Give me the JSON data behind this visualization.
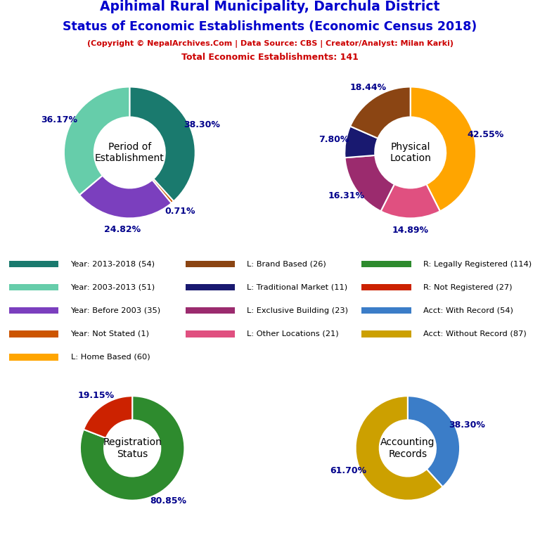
{
  "title_line1": "Apihimal Rural Municipality, Darchula District",
  "title_line2": "Status of Economic Establishments (Economic Census 2018)",
  "subtitle": "(Copyright © NepalArchives.Com | Data Source: CBS | Creator/Analyst: Milan Karki)",
  "subtitle2": "Total Economic Establishments: 141",
  "title_color": "#0000CC",
  "subtitle_color": "#CC0000",
  "pie1_label": "Period of\nEstablishment",
  "pie1_values": [
    38.3,
    0.71,
    24.82,
    36.17
  ],
  "pie1_colors": [
    "#1A7A6E",
    "#CC5500",
    "#7B3FBE",
    "#66CDAA"
  ],
  "pie1_pct": [
    "38.30%",
    "0.71%",
    "24.82%",
    "36.17%"
  ],
  "pie2_label": "Physical\nLocation",
  "pie2_values": [
    42.55,
    14.89,
    16.31,
    7.8,
    18.44
  ],
  "pie2_colors": [
    "#FFA500",
    "#E05080",
    "#9B2B6E",
    "#191970",
    "#8B4513"
  ],
  "pie2_pct": [
    "42.55%",
    "14.89%",
    "16.31%",
    "7.80%",
    "18.44%"
  ],
  "pie3_label": "Registration\nStatus",
  "pie3_values": [
    80.85,
    19.15
  ],
  "pie3_colors": [
    "#2E8B2E",
    "#CC2200"
  ],
  "pie3_pct": [
    "80.85%",
    "19.15%"
  ],
  "pie4_label": "Accounting\nRecords",
  "pie4_values": [
    38.3,
    61.7
  ],
  "pie4_colors": [
    "#3B7DC8",
    "#CCA000"
  ],
  "pie4_pct": [
    "38.30%",
    "61.70%"
  ],
  "legend_items": [
    {
      "label": "Year: 2013-2018 (54)",
      "color": "#1A7A6E"
    },
    {
      "label": "Year: 2003-2013 (51)",
      "color": "#66CDAA"
    },
    {
      "label": "Year: Before 2003 (35)",
      "color": "#7B3FBE"
    },
    {
      "label": "Year: Not Stated (1)",
      "color": "#CC5500"
    },
    {
      "label": "L: Home Based (60)",
      "color": "#FFA500"
    },
    {
      "label": "L: Brand Based (26)",
      "color": "#8B4513"
    },
    {
      "label": "L: Traditional Market (11)",
      "color": "#191970"
    },
    {
      "label": "L: Exclusive Building (23)",
      "color": "#9B2B6E"
    },
    {
      "label": "L: Other Locations (21)",
      "color": "#E05080"
    },
    {
      "label": "R: Legally Registered (114)",
      "color": "#2E8B2E"
    },
    {
      "label": "R: Not Registered (27)",
      "color": "#CC2200"
    },
    {
      "label": "Acct: With Record (54)",
      "color": "#3B7DC8"
    },
    {
      "label": "Acct: Without Record (87)",
      "color": "#CCA000"
    }
  ],
  "label_color": "#00008B",
  "center_label_color": "#000000"
}
